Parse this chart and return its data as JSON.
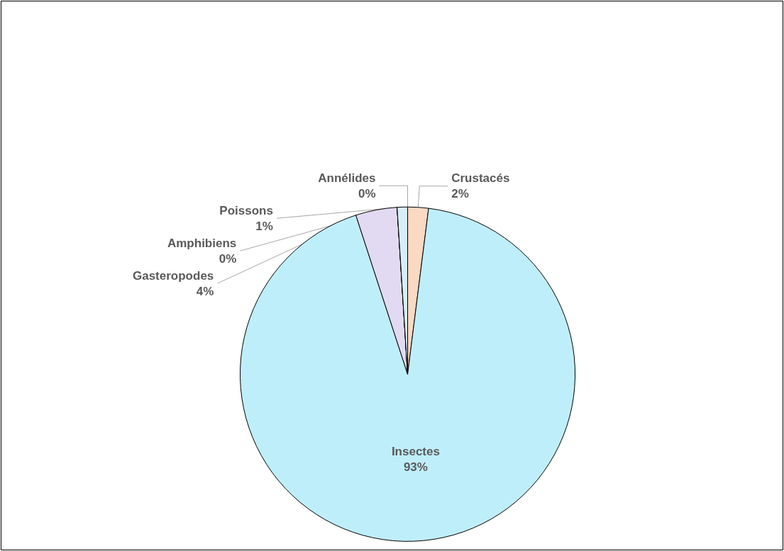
{
  "chart_data": {
    "type": "pie",
    "categories": [
      "Crustacés",
      "Insectes",
      "Gasteropodes",
      "Amphibiens",
      "Poissons",
      "Annélides"
    ],
    "values": [
      2,
      93,
      4,
      0,
      1,
      0
    ],
    "colors": [
      "#fbd9c2",
      "#bfeefb",
      "#e2daf2",
      "#e4f4fa",
      "#d6eef8",
      "#eef8fc"
    ],
    "value_labels": [
      "2%",
      "93%",
      "4%",
      "0%",
      "1%",
      "0%"
    ],
    "legend": false
  }
}
